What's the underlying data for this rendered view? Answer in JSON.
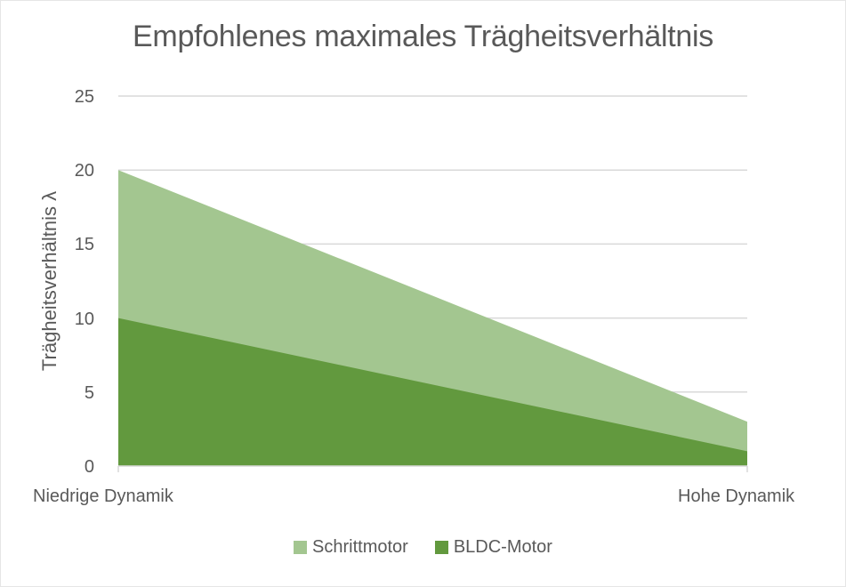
{
  "chart_data": {
    "type": "area",
    "title": "Empfohlenes maximales Trägheitsverhältnis",
    "xlabel": "",
    "ylabel": "Trägheitsverhältnis λ",
    "categories": [
      "Niedrige Dynamik",
      "Hohe Dynamik"
    ],
    "series": [
      {
        "name": "Schrittmotor",
        "values": [
          20,
          3
        ],
        "color": "#A3C690"
      },
      {
        "name": "BLDC-Motor",
        "values": [
          10,
          1
        ],
        "color": "#62993E"
      }
    ],
    "yticks": [
      0,
      5,
      10,
      15,
      20,
      25
    ],
    "ylim": [
      0,
      25
    ],
    "grid": true,
    "legend_position": "bottom",
    "stacked": false
  },
  "labels": {
    "title": "Empfohlenes maximales Trägheitsverhältnis",
    "ylabel": "Trägheitsverhältnis λ",
    "cat_left": "Niedrige Dynamik",
    "cat_right": "Hohe Dynamik",
    "legend_1": "Schrittmotor",
    "legend_2": "BLDC-Motor",
    "ytick_0": "0",
    "ytick_5": "5",
    "ytick_10": "10",
    "ytick_15": "15",
    "ytick_20": "20",
    "ytick_25": "25"
  }
}
